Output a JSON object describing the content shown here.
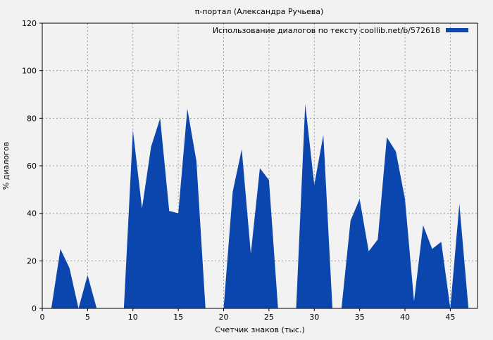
{
  "chart_data": {
    "type": "area",
    "title": "π-портал (Александра Ручьева)",
    "xlabel": "Счетчик знаков (тыс.)",
    "ylabel": "% диалогов",
    "xlim": [
      0,
      48
    ],
    "ylim": [
      0,
      120
    ],
    "x_ticks": [
      0,
      5,
      10,
      15,
      20,
      25,
      30,
      35,
      40,
      45
    ],
    "y_ticks": [
      0,
      20,
      40,
      60,
      80,
      100,
      120
    ],
    "grid": true,
    "legend_position": "top-right",
    "series": [
      {
        "name": "Использование диалогов по тексту coollib.net/b/572618",
        "color": "#0a46ae",
        "x": [
          0,
          1,
          2,
          3,
          4,
          5,
          6,
          7,
          8,
          9,
          10,
          11,
          12,
          13,
          14,
          15,
          16,
          17,
          18,
          19,
          20,
          21,
          22,
          23,
          24,
          25,
          26,
          27,
          28,
          29,
          30,
          31,
          32,
          33,
          34,
          35,
          36,
          37,
          38,
          39,
          40,
          41,
          42,
          43,
          44,
          45,
          46,
          47
        ],
        "y": [
          0,
          0,
          25,
          17,
          0,
          14,
          0,
          0,
          0,
          0,
          75,
          42,
          68,
          80,
          41,
          40,
          84,
          62,
          0,
          0,
          0,
          49,
          67,
          23,
          59,
          54,
          0,
          0,
          0,
          86,
          52,
          73,
          0,
          0,
          37,
          46,
          24,
          29,
          72,
          66,
          46,
          3,
          35,
          25,
          28,
          0,
          44,
          0
        ]
      }
    ]
  }
}
